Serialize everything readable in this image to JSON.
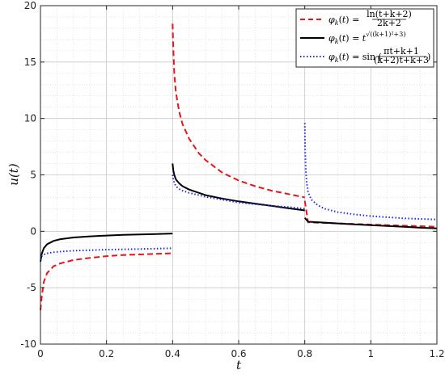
{
  "chart_data": {
    "type": "line",
    "xlabel": "t",
    "ylabel": "u(t)",
    "xlim": [
      0,
      1.2
    ],
    "ylim": [
      -10,
      20
    ],
    "xticks": [
      0,
      0.2,
      0.4,
      0.6,
      0.8,
      1,
      1.2
    ],
    "xtick_labels": [
      "0",
      "0.2",
      "0.4",
      "0.6",
      "0.8",
      "1",
      "1.2"
    ],
    "yticks": [
      -10,
      -5,
      0,
      5,
      10,
      15,
      20
    ],
    "ytick_labels": [
      "-10",
      "-5",
      "0",
      "5",
      "10",
      "15",
      "20"
    ],
    "grid": true,
    "minor_grid": true,
    "legend_position": "top-right",
    "series": [
      {
        "name": "φk(t) = ln(t+k+2) / (2k+2)",
        "color": "#e8141c",
        "style": "dashed",
        "segments": [
          {
            "x": [
              0.0,
              0.004,
              0.01,
              0.02,
              0.04,
              0.06,
              0.1,
              0.15,
              0.2,
              0.25,
              0.3,
              0.35,
              0.4
            ],
            "y": [
              -7.0,
              -5.8,
              -4.5,
              -3.7,
              -3.1,
              -2.85,
              -2.55,
              -2.35,
              -2.2,
              -2.1,
              -2.05,
              -2.0,
              -1.95
            ]
          },
          {
            "x": [
              0.4,
              0.402,
              0.405,
              0.41,
              0.42,
              0.43,
              0.45,
              0.48,
              0.5,
              0.55,
              0.6,
              0.65,
              0.7,
              0.75,
              0.8
            ],
            "y": [
              18.4,
              16.2,
              14.0,
              12.3,
              10.6,
              9.5,
              8.2,
              6.9,
              6.3,
              5.2,
              4.5,
              4.0,
              3.6,
              3.3,
              3.0
            ]
          },
          {
            "x": [
              0.8,
              0.81,
              0.85,
              0.9,
              0.95,
              1.0,
              1.05,
              1.1,
              1.15,
              1.2
            ],
            "y": [
              2.7,
              0.8,
              0.75,
              0.7,
              0.65,
              0.6,
              0.55,
              0.5,
              0.45,
              0.4
            ]
          }
        ]
      },
      {
        "name": "φk(t) = t^√((k+1)²+3)",
        "color": "#000000",
        "style": "solid",
        "segments": [
          {
            "x": [
              0.0,
              0.004,
              0.01,
              0.02,
              0.04,
              0.06,
              0.1,
              0.15,
              0.2,
              0.25,
              0.3,
              0.35,
              0.4
            ],
            "y": [
              -2.7,
              -2.0,
              -1.5,
              -1.15,
              -0.85,
              -0.7,
              -0.55,
              -0.45,
              -0.38,
              -0.32,
              -0.28,
              -0.24,
              -0.2
            ]
          },
          {
            "x": [
              0.4,
              0.402,
              0.405,
              0.41,
              0.42,
              0.43,
              0.45,
              0.48,
              0.5,
              0.55,
              0.6,
              0.65,
              0.7,
              0.75,
              0.8
            ],
            "y": [
              6.0,
              5.4,
              5.0,
              4.6,
              4.25,
              4.0,
              3.7,
              3.4,
              3.2,
              2.9,
              2.65,
              2.45,
              2.25,
              2.05,
              1.85
            ]
          },
          {
            "x": [
              0.8,
              0.81,
              0.85,
              0.9,
              0.95,
              1.0,
              1.05,
              1.1,
              1.15,
              1.2
            ],
            "y": [
              1.2,
              0.85,
              0.78,
              0.7,
              0.62,
              0.55,
              0.47,
              0.4,
              0.32,
              0.25
            ]
          }
        ]
      },
      {
        "name": "φk(t) = sin((πt+k+1) / ((k+2)t+k+3))",
        "color": "#1f2cd6",
        "style": "dotted",
        "segments": [
          {
            "x": [
              0.0,
              0.004,
              0.01,
              0.02,
              0.04,
              0.06,
              0.1,
              0.15,
              0.2,
              0.25,
              0.3,
              0.35,
              0.4
            ],
            "y": [
              -2.5,
              -2.2,
              -2.05,
              -1.95,
              -1.85,
              -1.8,
              -1.72,
              -1.67,
              -1.63,
              -1.6,
              -1.57,
              -1.54,
              -1.5
            ]
          },
          {
            "x": [
              0.4,
              0.402,
              0.405,
              0.41,
              0.42,
              0.43,
              0.45,
              0.48,
              0.5,
              0.55,
              0.6,
              0.65,
              0.7,
              0.75,
              0.8
            ],
            "y": [
              5.0,
              4.6,
              4.3,
              4.0,
              3.75,
              3.6,
              3.4,
              3.2,
              3.05,
              2.8,
              2.55,
              2.4,
              2.25,
              2.15,
              2.0
            ]
          },
          {
            "x": [
              0.8,
              0.801,
              0.803,
              0.806,
              0.81,
              0.82,
              0.84,
              0.86,
              0.9,
              0.95,
              1.0,
              1.05,
              1.1,
              1.15,
              1.2
            ],
            "y": [
              9.6,
              7.5,
              5.5,
              4.3,
              3.5,
              2.8,
              2.3,
              2.0,
              1.7,
              1.5,
              1.35,
              1.25,
              1.15,
              1.1,
              1.05
            ]
          }
        ]
      }
    ]
  }
}
